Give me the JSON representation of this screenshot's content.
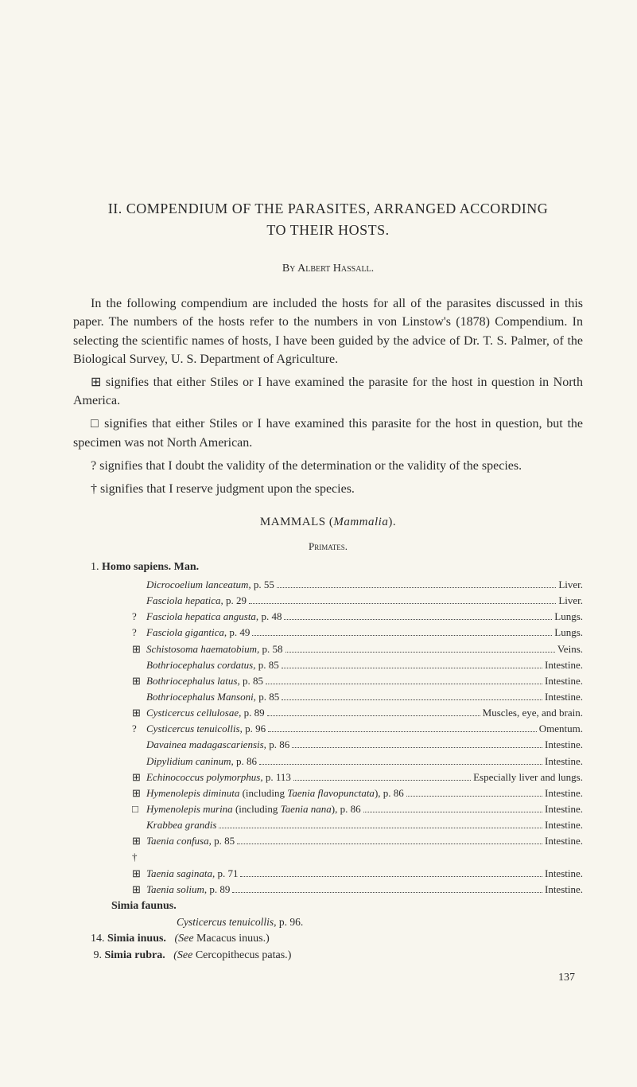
{
  "title_line1": "II. COMPENDIUM OF THE PARASITES, ARRANGED ACCORDING",
  "title_line2": "TO THEIR HOSTS.",
  "author": "By Albert Hassall.",
  "para1": "In the following compendium are included the hosts for all of the parasites discussed in this paper. The numbers of the hosts refer to the numbers in von Linstow's (1878) Compendium. In selecting the scientific names of hosts, I have been guided by the advice of Dr. T. S. Palmer, of the Biological Survey, U. S. Department of Agriculture.",
  "sym1": "⊞ signifies that either Stiles or I have examined the parasite for the host in question in North America.",
  "sym2": "□ signifies that either Stiles or I have examined this parasite for the host in question, but the specimen was not North American.",
  "sym3": "? signifies that I doubt the validity of the determination or the validity of the species.",
  "sym4": "† signifies that I reserve judgment upon the species.",
  "section": "MAMMALS (",
  "section_ital": "Mammalia",
  "section_end": ").",
  "subheading": "Primates.",
  "entry1_num": "1.",
  "entry1_name": "Homo sapiens.",
  "entry1_qual": "Man.",
  "rows": [
    {
      "sym": "",
      "left_ital": "Dicrocoelium lanceatum,",
      "left_rest": " p. 55",
      "right": "Liver."
    },
    {
      "sym": "",
      "left_ital": "Fasciola hepatica,",
      "left_rest": " p. 29",
      "right": "Liver."
    },
    {
      "sym": "?",
      "left_ital": "Fasciola hepatica angusta,",
      "left_rest": " p. 48",
      "right": "Lungs."
    },
    {
      "sym": "?",
      "left_ital": "Fasciola gigantica,",
      "left_rest": " p. 49",
      "right": "Lungs."
    },
    {
      "sym": "⊞",
      "left_ital": "Schistosoma haematobium,",
      "left_rest": " p. 58",
      "right": "Veins."
    },
    {
      "sym": "",
      "left_ital": "Bothriocephalus cordatus,",
      "left_rest": " p. 85",
      "right": "Intestine."
    },
    {
      "sym": "⊞",
      "left_ital": "Bothriocephalus latus,",
      "left_rest": " p. 85",
      "right": "Intestine."
    },
    {
      "sym": "",
      "left_ital": "Bothriocephalus Mansoni,",
      "left_rest": " p. 85",
      "right": "Intestine."
    },
    {
      "sym": "⊞",
      "left_ital": "Cysticercus cellulosae,",
      "left_rest": " p. 89",
      "right": "Muscles, eye, and brain."
    },
    {
      "sym": "?",
      "left_ital": "Cysticercus tenuicollis,",
      "left_rest": " p. 96",
      "right": "Omentum."
    },
    {
      "sym": "",
      "left_ital": "Davainea madagascariensis,",
      "left_rest": " p. 86",
      "right": "Intestine."
    },
    {
      "sym": "",
      "left_ital": "Dipylidium caninum,",
      "left_rest": " p. 86",
      "right": "Intestine."
    },
    {
      "sym": "⊞",
      "left_ital": "Echinococcus polymorphus,",
      "left_rest": " p. 113",
      "right": "Especially liver and lungs."
    },
    {
      "sym": "⊞",
      "left_ital": "Hymenolepis diminuta",
      "left_rest": " (including ",
      "left_ital2": "Taenia flavopunctata",
      "left_rest2": "), p. 86",
      "right": "Intestine."
    },
    {
      "sym": "□",
      "left_ital": "Hymenolepis murina",
      "left_rest": " (including ",
      "left_ital2": "Taenia nana",
      "left_rest2": "), p. 86",
      "right": "Intestine."
    },
    {
      "sym": "",
      "left_ital": "Krabbea grandis",
      "left_rest": "",
      "right": "Intestine."
    },
    {
      "sym": "⊞ †",
      "left_ital": "Taenia confusa,",
      "left_rest": " p. 85",
      "right": "Intestine."
    },
    {
      "sym": "⊞",
      "left_ital": "Taenia saginata,",
      "left_rest": " p. 71",
      "right": "Intestine."
    },
    {
      "sym": "⊞",
      "left_ital": "Taenia solium,",
      "left_rest": " p. 89",
      "right": "Intestine."
    }
  ],
  "simia_faunus": "Simia faunus.",
  "cysticercus": "Cysticercus tenuicollis,",
  "cysticercus_p": " p. 96.",
  "line14_num": "14.",
  "line14_bold": "Simia inuus.",
  "line14_see": "(See ",
  "line14_name": "Macacus inuus.",
  "line14_end": ")",
  "line9_num": "9.",
  "line9_bold": "Simia rubra.",
  "line9_see": "(See ",
  "line9_name": "Cercopithecus patas.",
  "line9_end": ")",
  "page_num": "137"
}
